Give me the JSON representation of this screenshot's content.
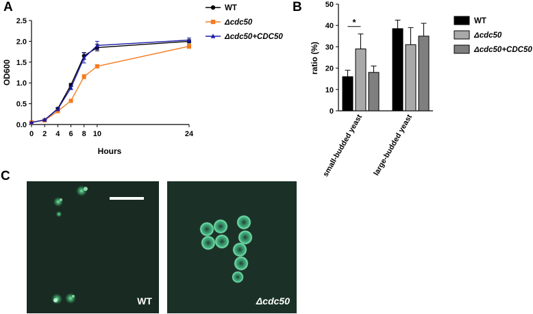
{
  "panels": {
    "a": "A",
    "b": "B",
    "c": "C"
  },
  "chart_data": [
    {
      "type": "line",
      "xlabel": "Hours",
      "ylabel": "OD600",
      "xlim": [
        0,
        24
      ],
      "ylim": [
        0,
        2.5
      ],
      "xticks": [
        0,
        2,
        4,
        6,
        8,
        10,
        24
      ],
      "yticks": [
        0.0,
        0.5,
        1.0,
        1.5,
        2.0,
        2.5
      ],
      "ytick_labels": [
        "0.0",
        "0.5",
        "1.0",
        "1.5",
        "2.0",
        "2.5"
      ],
      "legend_position": "top-right",
      "x": [
        0,
        2,
        4,
        6,
        8,
        10,
        24
      ],
      "series": [
        {
          "name": "WT",
          "color": "#000000",
          "marker": "circle",
          "values": [
            0.05,
            0.11,
            0.38,
            0.95,
            1.65,
            1.85,
            2.0
          ],
          "errors": [
            0.01,
            0.01,
            0.03,
            0.04,
            0.08,
            0.08,
            0.04
          ]
        },
        {
          "name": "Δcdc50",
          "color": "#f47b20",
          "marker": "square",
          "values": [
            0.05,
            0.1,
            0.32,
            0.57,
            1.15,
            1.4,
            1.88
          ],
          "errors": [
            0.01,
            0.01,
            0.03,
            0.04,
            0.05,
            0.04,
            0.05
          ]
        },
        {
          "name": "Δcdc50+CDC50",
          "color": "#1a1aa8",
          "marker": "triangle",
          "values": [
            0.05,
            0.11,
            0.37,
            0.88,
            1.6,
            1.9,
            2.03
          ],
          "errors": [
            0.01,
            0.01,
            0.04,
            0.04,
            0.12,
            0.1,
            0.05
          ]
        }
      ]
    },
    {
      "type": "bar",
      "ylabel": "ratio (%)",
      "ylim": [
        0,
        50
      ],
      "yticks": [
        0,
        10,
        20,
        30,
        40,
        50
      ],
      "categories": [
        "small-budded yeast",
        "large-budded yeast"
      ],
      "legend_position": "right",
      "significance": {
        "label": "*",
        "between": [
          "WT",
          "Δcdc50"
        ],
        "category": "small-budded yeast"
      },
      "series": [
        {
          "name": "WT",
          "color": "#000000",
          "values": [
            16,
            38.5
          ],
          "errors": [
            3,
            4
          ]
        },
        {
          "name": "Δcdc50",
          "color": "#a9a9a9",
          "values": [
            29,
            31
          ],
          "errors": [
            7,
            8
          ]
        },
        {
          "name": "Δcdc50+CDC50",
          "color": "#7f7f7f",
          "values": [
            18,
            35
          ],
          "errors": [
            3,
            6
          ]
        }
      ]
    }
  ],
  "micrographs": [
    {
      "label": "WT",
      "background": "#182a22",
      "fluor": "#66ee99"
    },
    {
      "label": "Δcdc50",
      "background": "#1b3128",
      "fluor": "#7fffc0"
    }
  ]
}
